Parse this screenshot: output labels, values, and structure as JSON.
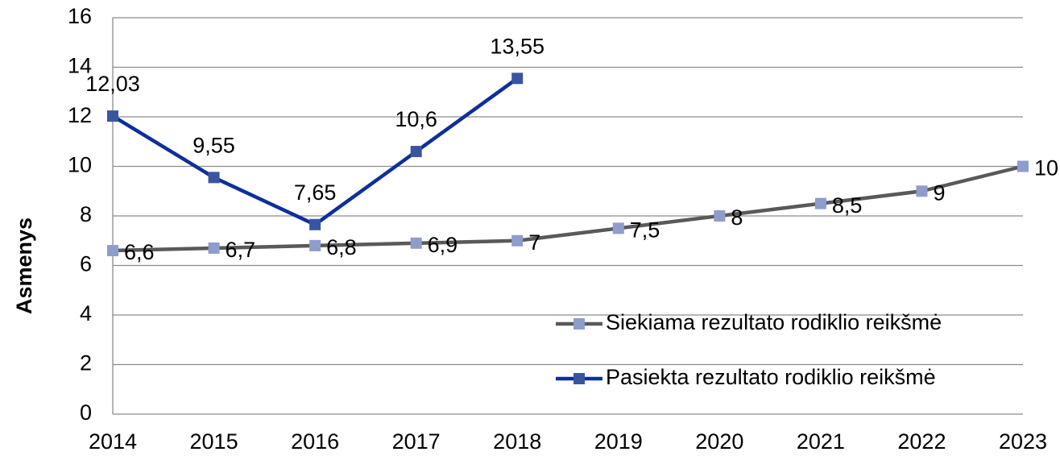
{
  "chart_data": {
    "type": "line",
    "ylabel": "Asmenys",
    "categories": [
      "2014",
      "2015",
      "2016",
      "2017",
      "2018",
      "2019",
      "2020",
      "2021",
      "2022",
      "2023"
    ],
    "series": [
      {
        "name": "Siekiama rezultato rodiklio reikšmė",
        "color": "#595959",
        "marker_color": "#8e9dcb",
        "values": [
          6.6,
          6.7,
          6.8,
          6.9,
          7,
          7.5,
          8,
          8.5,
          9,
          10
        ],
        "value_labels": [
          "6,6",
          "6,7",
          "6,8",
          "6,9",
          "7",
          "7,5",
          "8",
          "8,5",
          "9",
          "10"
        ]
      },
      {
        "name": "Pasiekta rezultato rodiklio reikšmė",
        "color": "#0d2f9a",
        "marker_color": "#3a55a0",
        "values": [
          12.03,
          9.55,
          7.65,
          10.6,
          13.55,
          null,
          null,
          null,
          null,
          null
        ],
        "value_labels": [
          "12,03",
          "9,55",
          "7,65",
          "10,6",
          "13,55",
          null,
          null,
          null,
          null,
          null
        ]
      }
    ],
    "ylim": [
      0,
      16
    ],
    "yticks": [
      0,
      2,
      4,
      6,
      8,
      10,
      12,
      14,
      16
    ],
    "grid": true,
    "legend": "lower right"
  }
}
